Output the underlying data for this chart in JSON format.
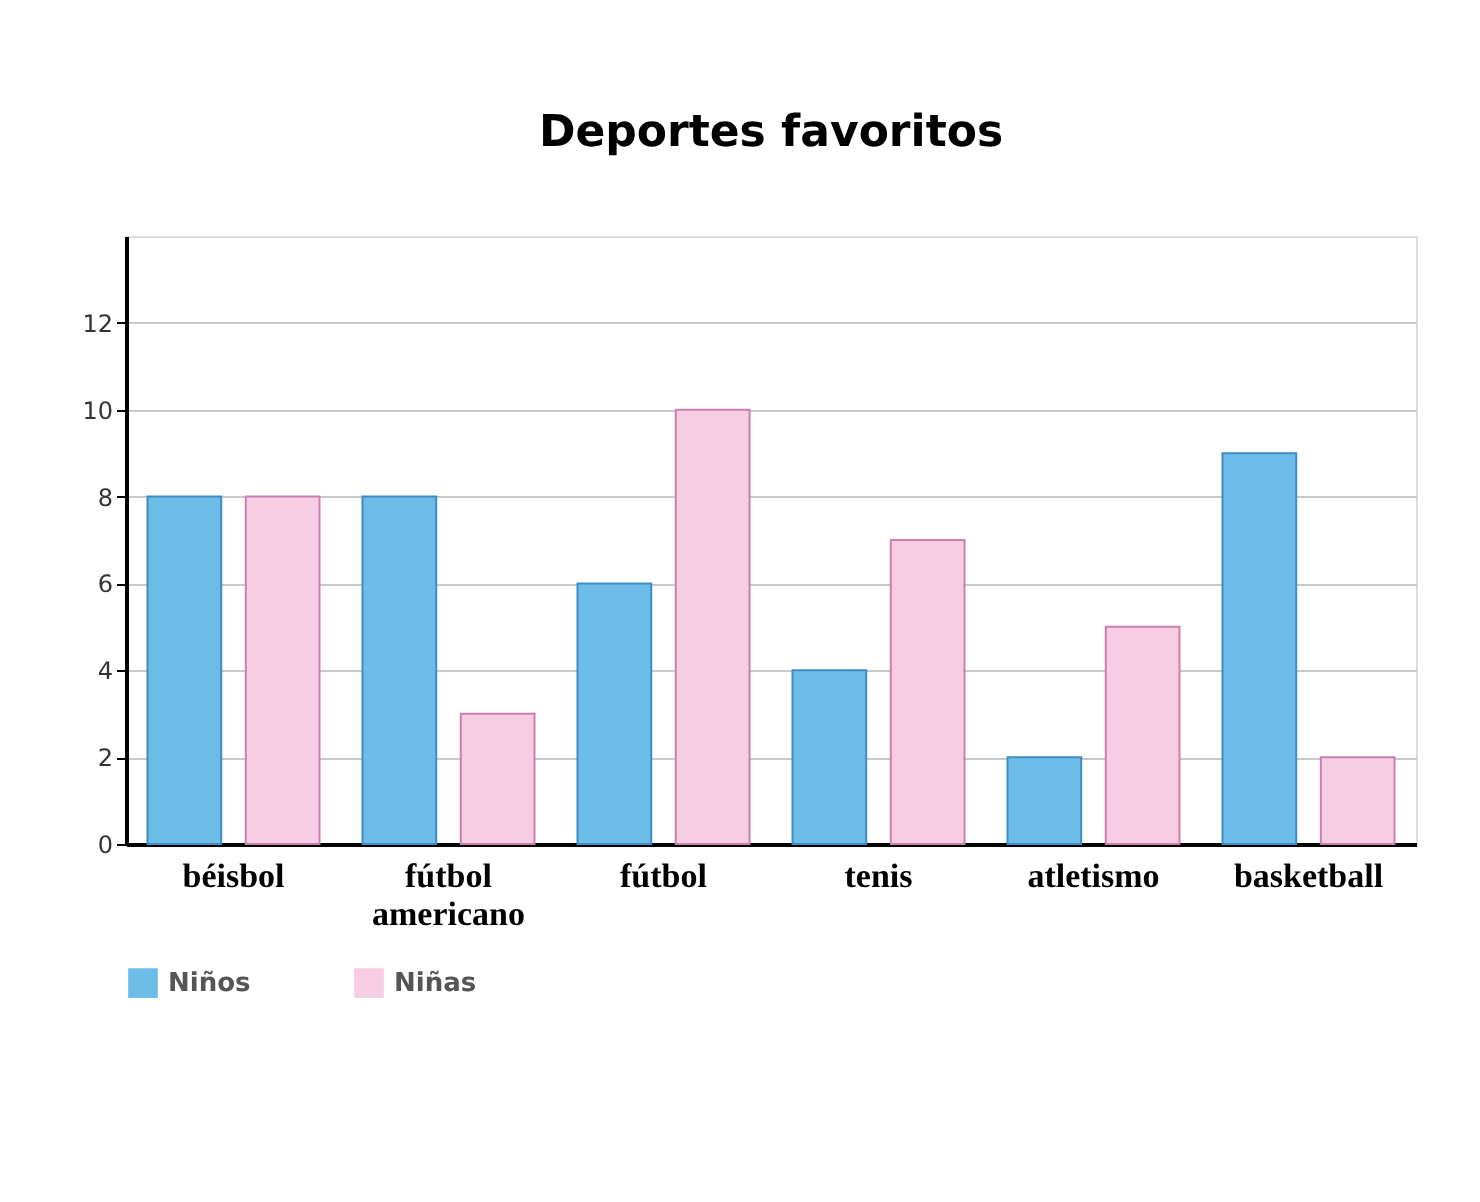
{
  "chart_data": {
    "type": "bar",
    "title": "Deportes favoritos",
    "categories": [
      "béisbol",
      "fútbol americano",
      "fútbol",
      "tenis",
      "atletismo",
      "basketball"
    ],
    "series": [
      {
        "name": "Niños",
        "color": "#6dbde9",
        "values": [
          8,
          8,
          6,
          4,
          2,
          9
        ]
      },
      {
        "name": "Niñas",
        "color": "#f6cde3",
        "values": [
          8,
          3,
          10,
          7,
          5,
          2
        ]
      }
    ],
    "ylim": [
      0,
      14
    ],
    "yticks": [
      0,
      2,
      4,
      6,
      8,
      10,
      12
    ],
    "grid": "y",
    "legend": "bottom"
  }
}
